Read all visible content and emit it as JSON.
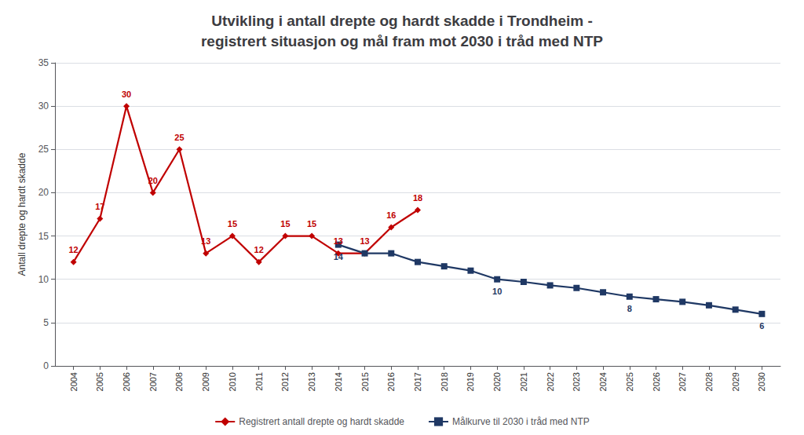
{
  "chart_data": {
    "type": "line",
    "title": "Utvikling i antall drepte og hardt skadde i Trondheim -\nregistrert situasjon og mål fram mot 2030 i tråd med NTP",
    "ylabel": "Antall drepte og hardt skadde",
    "x": [
      2004,
      2005,
      2006,
      2007,
      2008,
      2009,
      2010,
      2011,
      2012,
      2013,
      2014,
      2015,
      2016,
      2017,
      2018,
      2019,
      2020,
      2021,
      2022,
      2023,
      2024,
      2025,
      2026,
      2027,
      2028,
      2029,
      2030
    ],
    "series": [
      {
        "name": "Registrert antall drepte og hardt skadde",
        "color": "#c00000",
        "marker": "diamond",
        "data_labels": true,
        "values": [
          12,
          17,
          30,
          20,
          25,
          13,
          15,
          12,
          15,
          15,
          13,
          13,
          16,
          18,
          null,
          null,
          null,
          null,
          null,
          null,
          null,
          null,
          null,
          null,
          null,
          null,
          null
        ]
      },
      {
        "name": "Målkurve til 2030 i tråd med NTP",
        "color": "#1f3864",
        "marker": "square",
        "data_labels": true,
        "values": [
          null,
          null,
          null,
          null,
          null,
          null,
          null,
          null,
          null,
          null,
          14,
          13,
          13,
          12,
          11.5,
          11,
          10,
          9.7,
          9.3,
          9.0,
          8.5,
          8,
          7.7,
          7.4,
          7.0,
          6.5,
          6
        ],
        "value_labels": [
          null,
          null,
          null,
          null,
          null,
          null,
          null,
          null,
          null,
          null,
          "14",
          null,
          null,
          null,
          null,
          null,
          "10",
          null,
          null,
          null,
          null,
          "8",
          null,
          null,
          null,
          null,
          "6"
        ]
      }
    ],
    "xlim": [
      2003.3,
      2030.7
    ],
    "xticks": [
      2004,
      2005,
      2006,
      2007,
      2008,
      2009,
      2010,
      2011,
      2012,
      2013,
      2014,
      2015,
      2016,
      2017,
      2018,
      2019,
      2020,
      2021,
      2022,
      2023,
      2024,
      2025,
      2026,
      2027,
      2028,
      2029,
      2030
    ],
    "ylim": [
      0,
      35
    ],
    "yticks": [
      0,
      5,
      10,
      15,
      20,
      25,
      30,
      35
    ],
    "grid": true,
    "legend": "bottom"
  }
}
